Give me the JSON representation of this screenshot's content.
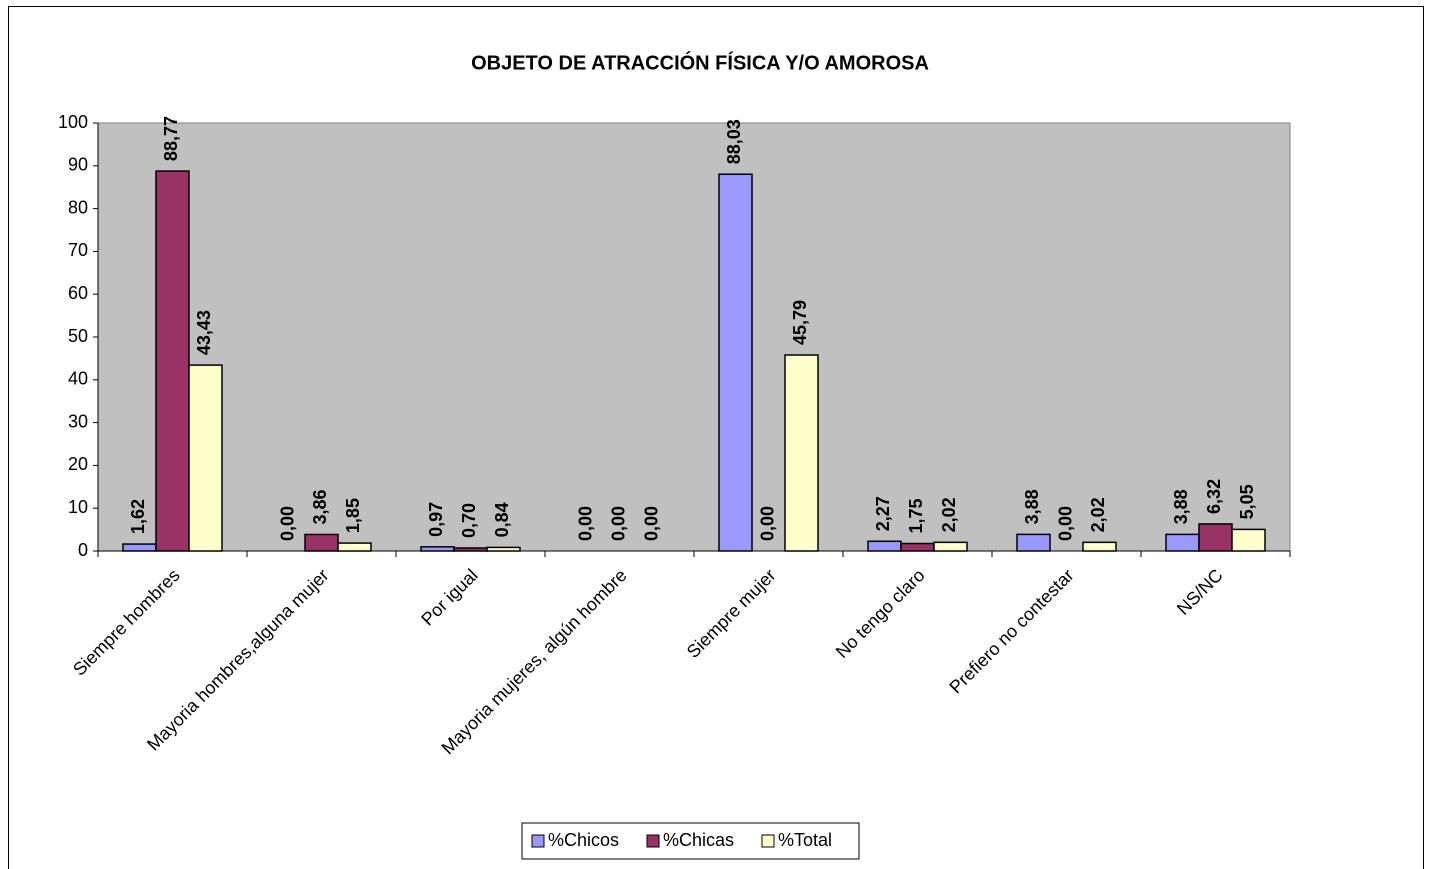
{
  "chart_data": {
    "type": "bar",
    "title": "OBJETO DE ATRACCIÓN FÍSICA Y/O AMOROSA",
    "categories": [
      "Siempre hombres",
      "Mayoria hombres,alguna mujer",
      "Por igual",
      "Mayoria mujeres, algún hombre",
      "Siempre mujer",
      "No tengo claro",
      "Prefiero no contestar",
      "NS/NC"
    ],
    "series": [
      {
        "name": "%Chicos",
        "color": "#9999ff",
        "values": [
          1.62,
          0,
          0.97,
          0,
          88.03,
          2.27,
          3.88,
          3.88
        ],
        "value_labels": [
          "1,62",
          "0,00",
          "0,97",
          "0,00",
          "88,03",
          "2,27",
          "3,88",
          "3,88"
        ]
      },
      {
        "name": "%Chicas",
        "color": "#993366",
        "values": [
          88.77,
          3.86,
          0.7,
          0,
          0,
          1.75,
          0,
          6.32
        ],
        "value_labels": [
          "88,77",
          "3,86",
          "0,70",
          "0,00",
          "0,00",
          "1,75",
          "0,00",
          "6,32"
        ]
      },
      {
        "name": "%Total",
        "color": "#ffffcc",
        "values": [
          43.43,
          1.85,
          0.84,
          0,
          45.79,
          2.02,
          2.02,
          5.05
        ],
        "value_labels": [
          "43,43",
          "1,85",
          "0,84",
          "0,00",
          "45,79",
          "2,02",
          "2,02",
          "5,05"
        ]
      }
    ],
    "ylim": [
      0,
      100
    ],
    "yticks": [
      0,
      10,
      20,
      30,
      40,
      50,
      60,
      70,
      80,
      90,
      100
    ],
    "legend": "bottom"
  }
}
